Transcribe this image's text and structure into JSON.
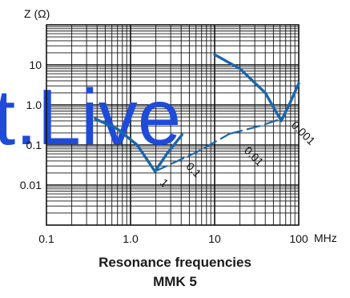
{
  "chart_data": {
    "type": "line",
    "ylabel": "Z (Ω)",
    "xunit": "MHz",
    "xscale": "log",
    "yscale": "log",
    "xlim": [
      0.1,
      100
    ],
    "ylim": [
      0.001,
      100
    ],
    "grid": true,
    "xticks": [
      {
        "value": 0.1,
        "label": "0.1"
      },
      {
        "value": 1,
        "label": "1.0"
      },
      {
        "value": 10,
        "label": "10"
      },
      {
        "value": 100,
        "label": "100"
      }
    ],
    "yticks": [
      {
        "value": 0.01,
        "label": "0.01"
      },
      {
        "value": 0.1,
        "label": "0.1"
      },
      {
        "value": 1,
        "label": "1.0"
      },
      {
        "value": 10,
        "label": "10"
      }
    ],
    "series": [
      {
        "id": "c1",
        "label": "1",
        "x": [
          0.38,
          0.7,
          1.2,
          1.95,
          2.7,
          4.1
        ],
        "y": [
          0.45,
          0.25,
          0.1,
          0.022,
          0.06,
          0.18
        ]
      },
      {
        "id": "c0_1",
        "label": "0.1",
        "x": [
          1.95,
          6.0,
          15
        ],
        "y": [
          0.022,
          0.065,
          0.19
        ]
      },
      {
        "id": "c0_01",
        "label": "0.01",
        "x": [
          15,
          35,
          62
        ],
        "y": [
          0.19,
          0.3,
          0.45
        ]
      },
      {
        "id": "c0_001",
        "label": "0.001",
        "x": [
          10,
          20,
          40,
          62,
          80,
          100
        ],
        "y": [
          18,
          8,
          2,
          0.4,
          1.2,
          3.5
        ]
      }
    ],
    "curve_labels": [
      {
        "text": "1",
        "x": 2.2,
        "y": 0.011
      },
      {
        "text": "0.1",
        "x": 4.5,
        "y": 0.028
      },
      {
        "text": "0.01",
        "x": 22,
        "y": 0.07
      },
      {
        "text": "0.001",
        "x": 80,
        "y": 0.3
      }
    ]
  },
  "watermark": "t.Live",
  "caption": {
    "line1": "Resonance frequencies",
    "line2": "MMK 5"
  }
}
